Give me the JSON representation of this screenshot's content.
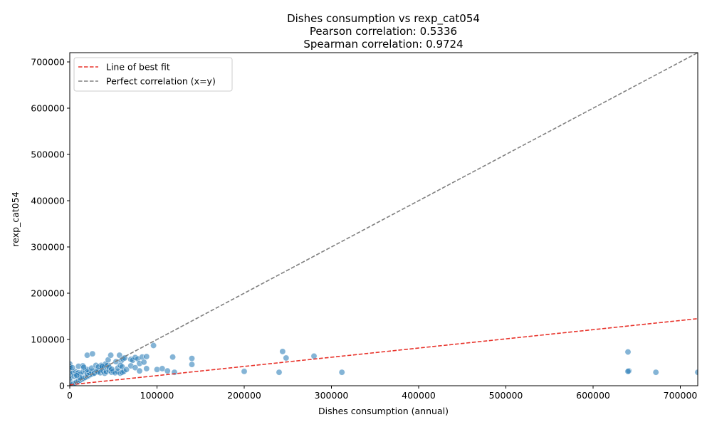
{
  "chart_data": {
    "type": "scatter",
    "title": [
      "Dishes consumption vs rexp_cat054",
      "Pearson correlation: 0.5336",
      "Spearman correlation: 0.9724"
    ],
    "xlabel": "Dishes consumption (annual)",
    "ylabel": "rexp_cat054",
    "xlim": [
      0,
      720000
    ],
    "ylim": [
      0,
      720000
    ],
    "xticks": [
      0,
      100000,
      200000,
      300000,
      400000,
      500000,
      600000,
      700000
    ],
    "yticks": [
      0,
      100000,
      200000,
      300000,
      400000,
      500000,
      600000,
      700000
    ],
    "grid": false,
    "legend_position": "upper-left",
    "point_color": "#1f77b4",
    "series": [
      {
        "name": "observations",
        "kind": "points",
        "x": [
          0,
          0,
          0,
          0,
          0,
          0,
          0,
          0,
          0,
          0,
          0,
          0,
          0,
          0,
          0,
          0,
          2000,
          4000,
          6000,
          8000,
          10000,
          12000,
          14000,
          16000,
          18000,
          20000,
          22000,
          24000,
          26000,
          28000,
          30000,
          32000,
          34000,
          36000,
          38000,
          40000,
          42000,
          44000,
          4000,
          6000,
          8000,
          10000,
          12000,
          15000,
          18000,
          20000,
          22000,
          25000,
          28000,
          30000,
          32000,
          35000,
          38000,
          40000,
          42000,
          45000,
          48000,
          50000,
          52000,
          55000,
          58000,
          60000,
          62000,
          3000,
          10000,
          15000,
          5000,
          12000,
          8000,
          20000,
          16000,
          25000,
          20000,
          26000,
          36000,
          41000,
          44000,
          47000,
          53000,
          57000,
          59000,
          61000,
          63000,
          70000,
          72000,
          75000,
          78000,
          80000,
          83000,
          85000,
          88000,
          45000,
          48000,
          55000,
          58000,
          60000,
          65000,
          70000,
          75000,
          80000,
          88000,
          30000,
          33000,
          37000,
          96000,
          100000,
          106000,
          112000,
          118000,
          120000,
          140000,
          140000,
          200000,
          240000,
          244000,
          248000,
          280000,
          312000,
          640000,
          641000,
          640000,
          672000,
          720000
        ],
        "y": [
          47000,
          42000,
          38000,
          33000,
          30000,
          27000,
          24000,
          20000,
          16000,
          13000,
          10000,
          7000,
          5000,
          3000,
          1500,
          500,
          2000,
          4000,
          6000,
          8000,
          10000,
          12000,
          14000,
          16000,
          18000,
          20000,
          22000,
          24000,
          26000,
          28000,
          30000,
          32000,
          34000,
          36000,
          38000,
          40000,
          42000,
          44000,
          28000,
          31000,
          26000,
          28000,
          25000,
          30000,
          32000,
          26000,
          29000,
          31000,
          27000,
          33000,
          30000,
          28000,
          32000,
          27000,
          30000,
          33000,
          29000,
          31000,
          28000,
          30000,
          27000,
          29000,
          31000,
          39000,
          42000,
          43000,
          20000,
          17000,
          22000,
          35000,
          40000,
          38000,
          66000,
          69000,
          44000,
          47000,
          56000,
          66000,
          52000,
          66000,
          54000,
          58000,
          60000,
          57000,
          55000,
          61000,
          58000,
          48000,
          62000,
          51000,
          63000,
          40000,
          36000,
          38000,
          44000,
          41000,
          35000,
          43000,
          39000,
          32000,
          37000,
          44000,
          41000,
          42000,
          87000,
          35000,
          37000,
          32000,
          62000,
          29000,
          46000,
          59000,
          31000,
          29000,
          74000,
          60000,
          64000,
          29000,
          73000,
          32000,
          31000,
          29000,
          29000
        ]
      },
      {
        "name": "Line of best fit",
        "kind": "line",
        "style": "dashed",
        "color": "#e8332b",
        "x": [
          0,
          720000
        ],
        "y": [
          2000,
          145000
        ]
      },
      {
        "name": "Perfect correlation (x=y)",
        "kind": "line",
        "style": "dashed",
        "color": "#808080",
        "x": [
          0,
          720000
        ],
        "y": [
          0,
          720000
        ]
      }
    ]
  }
}
